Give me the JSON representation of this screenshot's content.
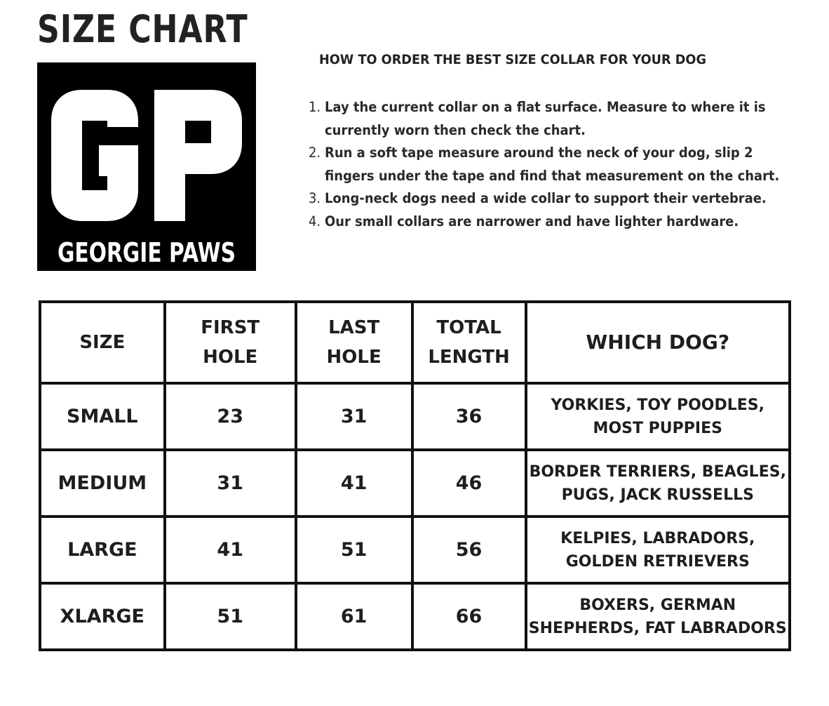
{
  "title": "SIZE CHART",
  "logo": {
    "letters": "GP",
    "brand": "GEORGIE PAWS"
  },
  "instructions": {
    "heading": "HOW TO ORDER THE BEST SIZE COLLAR FOR YOUR DOG",
    "items": [
      {
        "num": "1.",
        "text": "Lay the current collar on a flat surface.  Measure to where it is currently worn then check the chart."
      },
      {
        "num": "2.",
        "text": "Run a soft tape measure around the neck of your dog, slip 2 fingers under the tape and find that measurement on the chart."
      },
      {
        "num": "3.",
        "text": "Long-neck dogs need a wide collar to support their vertebrae."
      },
      {
        "num": "4.",
        "text": "Our small collars are narrower and have lighter hardware."
      }
    ]
  },
  "table": {
    "headers": [
      [
        "SIZE"
      ],
      [
        "FIRST",
        "HOLE"
      ],
      [
        "LAST",
        "HOLE"
      ],
      [
        "TOTAL",
        "LENGTH"
      ],
      [
        "WHICH DOG?"
      ]
    ],
    "rows": [
      {
        "size": "SMALL",
        "first": "23",
        "last": "31",
        "total": "36",
        "dog": [
          "YORKIES, TOY POODLES,",
          "MOST PUPPIES"
        ]
      },
      {
        "size": "MEDIUM",
        "first": "31",
        "last": "41",
        "total": "46",
        "dog": [
          "BORDER TERRIERS, BEAGLES,",
          "PUGS, JACK RUSSELLS"
        ]
      },
      {
        "size": "LARGE",
        "first": "41",
        "last": "51",
        "total": "56",
        "dog": [
          "KELPIES, LABRADORS,",
          "GOLDEN RETRIEVERS"
        ]
      },
      {
        "size": "XLARGE",
        "first": "51",
        "last": "61",
        "total": "66",
        "dog": [
          "BOXERS, GERMAN",
          "SHEPHERDS, FAT LABRADORS"
        ]
      }
    ]
  }
}
